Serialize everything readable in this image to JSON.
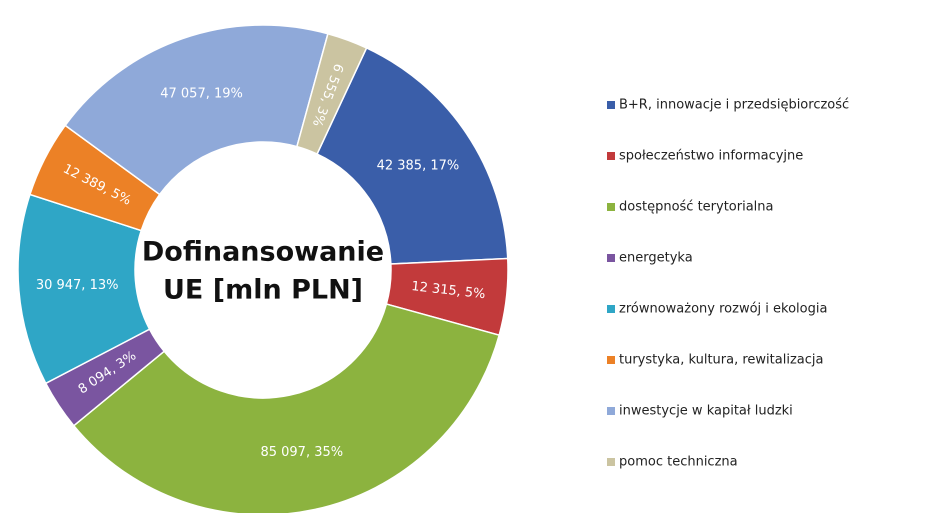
{
  "chart_data": {
    "type": "donut",
    "title": [
      "Dofinansowanie",
      "UE [mln PLN]"
    ],
    "categories": [
      "B+R, innowacje i przedsiębiorczość",
      "społeczeństwo informacyjne",
      "dostępność terytorialna",
      "energetyka",
      "zrównoważony rozwój i ekologia",
      "turystyka, kultura, rewitalizacja",
      "inwestycje w kapitał ludzki",
      "pomoc techniczna"
    ],
    "values": [
      42385,
      12315,
      85097,
      8094,
      30947,
      12389,
      47057,
      6555
    ],
    "value_labels": [
      "42 385, 17%",
      "12 315, 5%",
      "85 097, 35%",
      "8 094, 3%",
      "30 947, 13%",
      "12 389, 5%",
      "47 057, 19%",
      "6 555, 3%"
    ],
    "colors": [
      "#3a5ea9",
      "#c23a3b",
      "#8cb33f",
      "#7a55a0",
      "#2fa6c6",
      "#ec8126",
      "#8fa9d9",
      "#cbc4a1"
    ],
    "legend": "right"
  }
}
